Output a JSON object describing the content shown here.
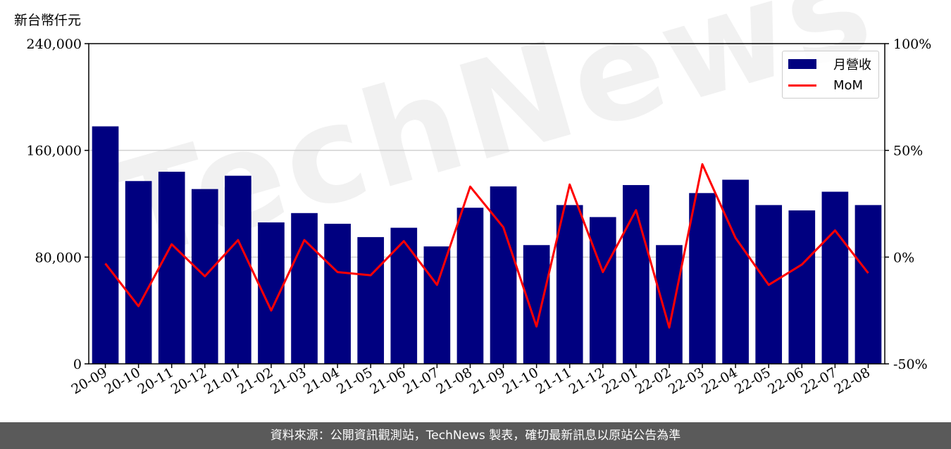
{
  "header": {
    "unit_label": "新台幣仟元"
  },
  "legend": {
    "bar_label": "月營收",
    "line_label": "MoM"
  },
  "footer": {
    "source_text": "資料來源：公開資訊觀測站，TechNews 製表，確切最新訊息以原站公告為準"
  },
  "watermark": {
    "text": "TechNews"
  },
  "colors": {
    "bar": "#000080",
    "line": "#ff0000",
    "grid": "#d0d0d0",
    "footer_bg": "#5a5a5a"
  },
  "chart_data": {
    "type": "bar",
    "categories": [
      "20-09",
      "20-10",
      "20-11",
      "20-12",
      "21-01",
      "21-02",
      "21-03",
      "21-04",
      "21-05",
      "21-06",
      "21-07",
      "21-08",
      "21-09",
      "21-10",
      "21-11",
      "21-12",
      "22-01",
      "22-02",
      "22-03",
      "22-04",
      "22-05",
      "22-06",
      "22-07",
      "22-08"
    ],
    "series": [
      {
        "name": "月營收",
        "axis": "left",
        "type": "bar",
        "values": [
          178000,
          137000,
          144000,
          131000,
          141000,
          106000,
          113000,
          105000,
          95000,
          102000,
          88000,
          117000,
          133000,
          89000,
          119000,
          110000,
          134000,
          89000,
          128000,
          138000,
          119000,
          115000,
          129000,
          119000
        ]
      },
      {
        "name": "MoM",
        "axis": "right",
        "type": "line",
        "values": [
          -3,
          -23,
          6,
          -9,
          8,
          -25,
          8,
          -7,
          -8.5,
          7.5,
          -13,
          33,
          14,
          -32.5,
          34,
          -7,
          22,
          -33,
          43.5,
          9,
          -13,
          -3.5,
          12.5,
          -7.5
        ]
      }
    ],
    "y_left": {
      "lim": [
        0,
        240000
      ],
      "ticks": [
        0,
        80000,
        160000,
        240000
      ],
      "tick_labels": [
        "0",
        "80,000",
        "160,000",
        "240,000"
      ]
    },
    "y_right": {
      "lim": [
        -50,
        100
      ],
      "ticks": [
        -50,
        0,
        50,
        100
      ],
      "tick_labels": [
        "-50%",
        "0%",
        "50%",
        "100%"
      ]
    },
    "grid": "horizontal",
    "legend_position": "top-right"
  }
}
